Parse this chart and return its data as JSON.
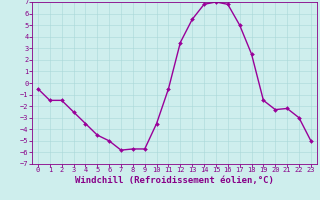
{
  "x": [
    0,
    1,
    2,
    3,
    4,
    5,
    6,
    7,
    8,
    9,
    10,
    11,
    12,
    13,
    14,
    15,
    16,
    17,
    18,
    19,
    20,
    21,
    22,
    23
  ],
  "y": [
    -0.5,
    -1.5,
    -1.5,
    -2.5,
    -3.5,
    -4.5,
    -5.0,
    -5.8,
    -5.7,
    -5.7,
    -3.5,
    -0.5,
    3.5,
    5.5,
    6.8,
    7.0,
    6.8,
    5.0,
    2.5,
    -1.5,
    -2.3,
    -2.2,
    -3.0,
    -5.0
  ],
  "line_color": "#990099",
  "marker": "D",
  "marker_size": 2,
  "xlim": [
    -0.5,
    23.5
  ],
  "ylim": [
    -7,
    7
  ],
  "yticks": [
    -7,
    -6,
    -5,
    -4,
    -3,
    -2,
    -1,
    0,
    1,
    2,
    3,
    4,
    5,
    6,
    7
  ],
  "xticks": [
    0,
    1,
    2,
    3,
    4,
    5,
    6,
    7,
    8,
    9,
    10,
    11,
    12,
    13,
    14,
    15,
    16,
    17,
    18,
    19,
    20,
    21,
    22,
    23
  ],
  "xlabel": "Windchill (Refroidissement éolien,°C)",
  "bg_color": "#ceeeed",
  "grid_color": "#aad8d8",
  "tick_color": "#880088",
  "label_color": "#880088",
  "tick_fontsize": 5.0,
  "xlabel_fontsize": 6.5,
  "line_width": 1.0
}
